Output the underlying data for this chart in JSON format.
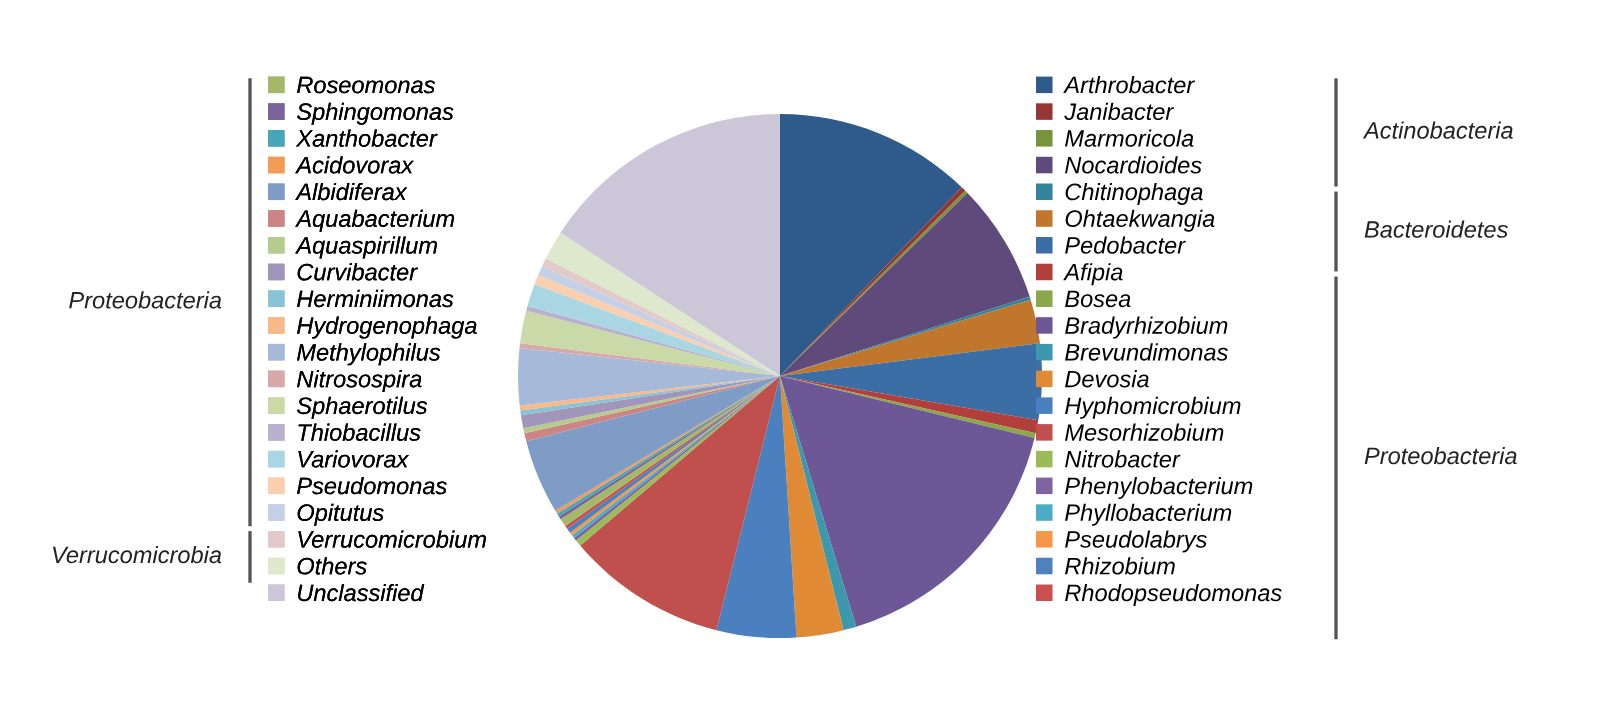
{
  "chart_data": {
    "type": "pie",
    "categories": [
      "Arthrobacter",
      "Janibacter",
      "Marmoricola",
      "Nocardioides",
      "Chitinophaga",
      "Ohtaekwangia",
      "Pedobacter",
      "Afipia",
      "Bosea",
      "Bradyrhizobium",
      "Brevundimonas",
      "Devosia",
      "Hyphomicrobium",
      "Mesorhizobium",
      "Nitrobacter",
      "Phenylobacterium",
      "Phyllobacterium",
      "Pseudolabrys",
      "Rhizobium",
      "Rhodopseudomonas",
      "Roseomonas",
      "Sphingomonas",
      "Xanthobacter",
      "Acidovorax",
      "Albidiferax",
      "Aquabacterium",
      "Aquaspirillum",
      "Curvibacter",
      "Herminiimonas",
      "Hydrogenophaga",
      "Methylophilus",
      "Nitrosospira",
      "Sphaerotilus",
      "Thiobacillus",
      "Variovorax",
      "Pseudomonas",
      "Opitutus",
      "Verrucomicrobium",
      "Others",
      "Unclassified"
    ],
    "values": [
      12.2,
      0.3,
      0.2,
      7.4,
      0.2,
      2.7,
      4.7,
      0.8,
      0.3,
      16.5,
      0.8,
      2.9,
      4.9,
      9.9,
      0.4,
      0.2,
      0.2,
      0.2,
      0.3,
      0.2,
      0.5,
      0.2,
      0.2,
      0.2,
      4.6,
      0.5,
      0.3,
      0.8,
      0.3,
      0.3,
      3.5,
      0.3,
      2.0,
      0.3,
      1.4,
      0.6,
      0.6,
      0.5,
      1.8,
      15.8
    ],
    "colors": [
      "#2f5b8c",
      "#943634",
      "#77933c",
      "#5f4a7b",
      "#31849b",
      "#c0762c",
      "#3a6ea5",
      "#b33f3c",
      "#8aa84a",
      "#6e5796",
      "#3c98ad",
      "#e08a35",
      "#4a7fc0",
      "#c0504d",
      "#9bbb59",
      "#8064a2",
      "#4bacc6",
      "#f79646",
      "#4f81bd",
      "#c9504f",
      "#a5b86a",
      "#7a6499",
      "#48a6bb",
      "#f29b55",
      "#7f9cc7",
      "#cc8585",
      "#b5cc8e",
      "#a295bb",
      "#8ac4d4",
      "#f8b98a",
      "#a7b9d8",
      "#d6a9a8",
      "#c9d9a8",
      "#b8b0cc",
      "#a9d6e2",
      "#f9cfb0",
      "#c4d0e5",
      "#e2cac9",
      "#dde8cc",
      "#ccc7d8"
    ],
    "annotations": [
      "Proteobacteria",
      "Verrucomicrobia",
      "Actinobacteria",
      "Bacteroidetes",
      "Proteobacteria"
    ],
    "legend": "right"
  }
}
